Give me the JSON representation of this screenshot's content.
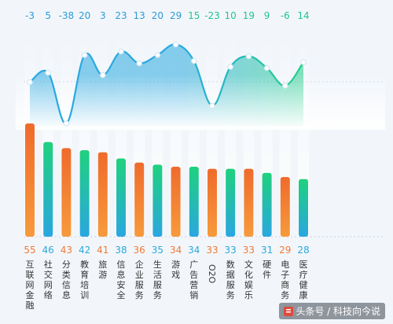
{
  "chart_data": {
    "type": "bar",
    "categories": [
      "互联网金融",
      "社交网络",
      "分类信息",
      "教育培训",
      "旅游",
      "信息安全",
      "企业服务",
      "生活服务",
      "游戏",
      "广告营销",
      "O2O",
      "数据服务",
      "文化娱乐",
      "硬件",
      "电子商务",
      "医疗健康"
    ],
    "values": [
      55,
      46,
      43,
      42,
      41,
      38,
      36,
      35,
      34,
      34,
      33,
      33,
      33,
      31,
      29,
      28
    ],
    "bar_colors": [
      "orange",
      "green",
      "orange",
      "green",
      "orange",
      "green",
      "orange",
      "green",
      "orange",
      "green",
      "orange",
      "green",
      "orange",
      "green",
      "orange",
      "green"
    ],
    "change_series": {
      "values": [
        -3,
        5,
        -38,
        20,
        3,
        23,
        13,
        20,
        29,
        15,
        -23,
        10,
        19,
        9,
        -6,
        14
      ]
    },
    "colors": {
      "orange_top": "#ef6b2c",
      "orange_bottom": "#f79a3c",
      "green_top": "#1fd17e",
      "green_bottom": "#2aa7e0",
      "label_orange": "#f07a36",
      "label_green": "#2aa9d9",
      "curve_blue": "#2aa9e0",
      "curve_green": "#23cf8a",
      "top_label_blue": "#2e9bd6",
      "top_label_green": "#22c48a",
      "axis_text": "#333333"
    }
  },
  "watermark": {
    "text": "头条号 / 科技向今说"
  }
}
